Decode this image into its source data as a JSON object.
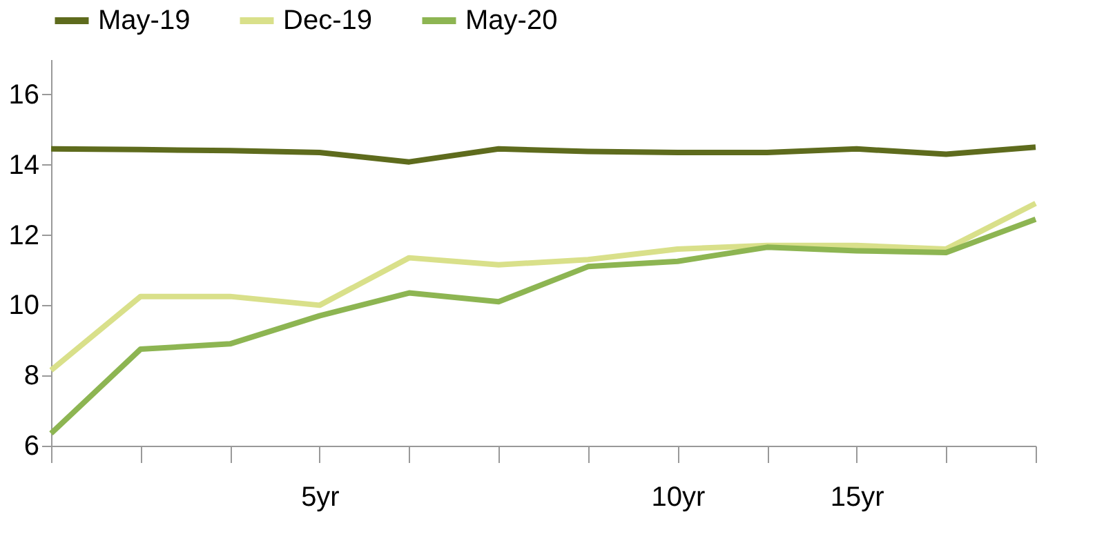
{
  "chart_data": {
    "type": "line",
    "categories": [
      null,
      null,
      null,
      "5yr",
      null,
      null,
      null,
      "10yr",
      null,
      "15yr",
      null,
      null
    ],
    "series": [
      {
        "name": "May-19",
        "color": "#5e6b1d",
        "values": [
          14.45,
          14.43,
          14.4,
          14.35,
          14.08,
          14.45,
          14.38,
          14.35,
          14.35,
          14.45,
          14.3,
          14.5
        ]
      },
      {
        "name": "Dec-19",
        "color": "#d9e08a",
        "values": [
          8.15,
          10.25,
          10.25,
          10.0,
          11.35,
          11.15,
          11.3,
          11.6,
          11.7,
          11.7,
          11.6,
          12.9
        ]
      },
      {
        "name": "May-20",
        "color": "#8db552",
        "values": [
          6.35,
          8.75,
          8.9,
          9.7,
          10.35,
          10.1,
          11.1,
          11.25,
          11.65,
          11.55,
          11.5,
          12.45
        ]
      }
    ],
    "ylim": [
      6,
      17
    ],
    "yticks": [
      6,
      8,
      10,
      12,
      14,
      16
    ],
    "grid": false,
    "legend": "top",
    "marker": "none",
    "line_style": "solid"
  }
}
